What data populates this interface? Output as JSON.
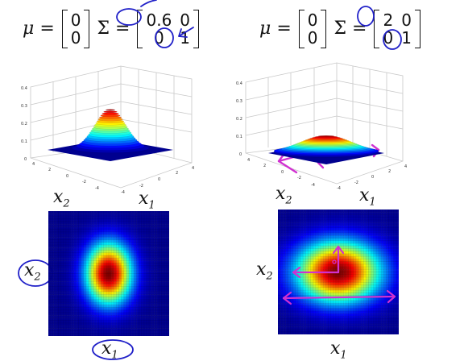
{
  "left_panel": {
    "mu_symbol": "μ",
    "equals": "=",
    "sigma_symbol": "Σ",
    "mu_vector": [
      "0",
      "0"
    ],
    "sigma_matrix": [
      [
        "0.6",
        "0"
      ],
      [
        "0",
        "1"
      ]
    ],
    "surface_z_ticks": [
      "0.4",
      "0.3",
      "0.2",
      "0.1",
      "0"
    ],
    "surface_x_ticks": [
      "4",
      "2",
      "0",
      "-2",
      "-4"
    ],
    "surface_y_ticks": [
      "-4",
      "-2",
      "0",
      "2",
      "4"
    ],
    "surface_xlabel": "x",
    "surface_xlabel_sub": "2",
    "surface_ylabel": "x",
    "surface_ylabel_sub": "1",
    "contour_ylabel": "x",
    "contour_ylabel_sub": "2",
    "contour_xlabel": "x",
    "contour_xlabel_sub": "1",
    "sigma_x": 0.6,
    "sigma_y": 1.0
  },
  "right_panel": {
    "mu_symbol": "μ",
    "equals": "=",
    "sigma_symbol": "Σ",
    "mu_vector": [
      "0",
      "0"
    ],
    "sigma_matrix": [
      [
        "2",
        "0"
      ],
      [
        "0",
        "1"
      ]
    ],
    "surface_z_ticks": [
      "0.4",
      "0.3",
      "0.2",
      "0.1",
      "0"
    ],
    "surface_x_ticks": [
      "4",
      "2",
      "0",
      "-2",
      "-4"
    ],
    "surface_y_ticks": [
      "-4",
      "-2",
      "0",
      "2",
      "4"
    ],
    "surface_xlabel": "x",
    "surface_xlabel_sub": "2",
    "surface_ylabel": "x",
    "surface_ylabel_sub": "1",
    "contour_ylabel": "x",
    "contour_ylabel_sub": "2",
    "contour_xlabel": "x",
    "contour_xlabel_sub": "1",
    "sigma_x": 2.0,
    "sigma_y": 1.0
  },
  "annotation_color": "#2020c8",
  "arrow_color": "#d030d0"
}
